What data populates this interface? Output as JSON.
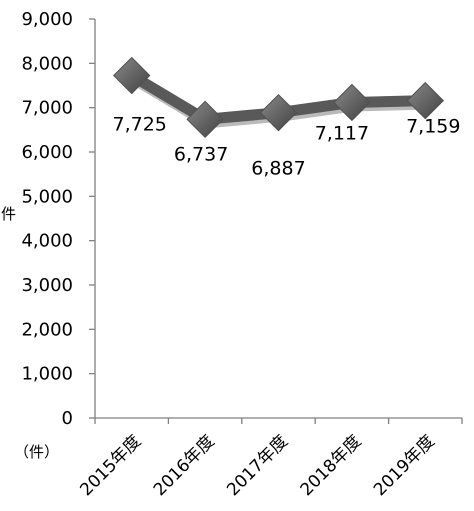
{
  "chart_data": {
    "type": "line",
    "categories": [
      "2015年度",
      "2016年度",
      "2017年度",
      "2018年度",
      "2019年度"
    ],
    "values": [
      7725,
      6737,
      6887,
      7117,
      7159
    ],
    "data_labels": [
      "7,725",
      "6,737",
      "6,887",
      "7,117",
      "7,159"
    ],
    "y_ticks": [
      "0",
      "1,000",
      "2,000",
      "3,000",
      "4,000",
      "5,000",
      "6,000",
      "7,000",
      "8,000",
      "9,000"
    ],
    "ylabel": "件",
    "y_unit_label": "（件）",
    "ylim": [
      0,
      9000
    ],
    "grid": false,
    "line_color": "#595959",
    "marker_color": "#595959",
    "marker": "diamond"
  }
}
